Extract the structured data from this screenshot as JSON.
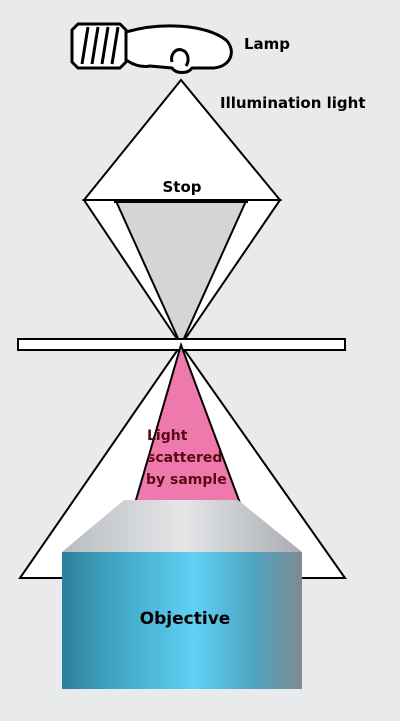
{
  "labels": {
    "lamp": "Lamp",
    "illumination": "Illumination light",
    "stop": "Stop",
    "scatter_line1": "Light",
    "scatter_line2": "scattered",
    "scatter_line3": "by sample",
    "objective": "Objective"
  },
  "colors": {
    "background": "#e9eaec",
    "stop_fill": "#d4d5d7",
    "scatter_fill": "#ee79ad",
    "scatter_text": "#5a0a14",
    "objective_top": "#cfd2d4",
    "objective_left": "#2d7f98",
    "objective_mid": "#5fd0f3",
    "objective_right": "#7e8a92"
  },
  "icons": {
    "lamp": "lightbulb-icon"
  }
}
